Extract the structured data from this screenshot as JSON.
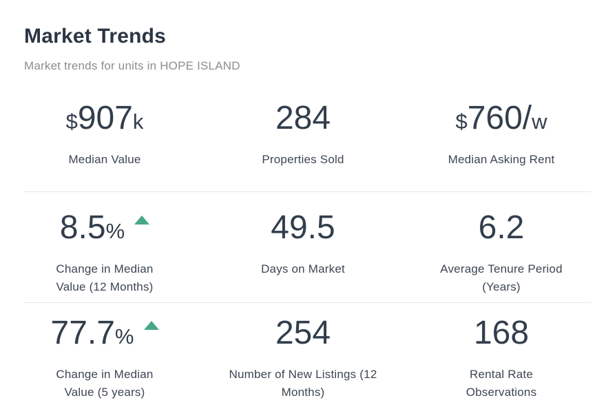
{
  "header": {
    "title": "Market Trends",
    "subtitle": "Market trends for units in HOPE ISLAND"
  },
  "colors": {
    "accent_green": "#46a888",
    "value_text": "#333e4c",
    "label_text": "#3d4653",
    "subtitle_text": "#8d8d8d",
    "divider": "#e7e7e7"
  },
  "stats": [
    {
      "prefix": "$",
      "main": "907",
      "suffix": "k",
      "label": "Median Value"
    },
    {
      "prefix": "",
      "main": "284",
      "suffix": "",
      "label": "Properties Sold"
    },
    {
      "prefix": "$",
      "main": "760/",
      "suffix": "w",
      "label": "Median Asking Rent"
    },
    {
      "prefix": "",
      "main": "8.5",
      "suffix": "%",
      "trend": "up",
      "trend_icon": "triangle-up",
      "label": "Change in Median\nValue (12 Months)"
    },
    {
      "prefix": "",
      "main": "49.5",
      "suffix": "",
      "label": "Days on Market"
    },
    {
      "prefix": "",
      "main": "6.2",
      "suffix": "",
      "label": "Average Tenure Period\n(Years)"
    },
    {
      "prefix": "",
      "main": "77.7",
      "suffix": "%",
      "trend": "up",
      "trend_icon": "triangle-up",
      "label": "Change in Median\nValue (5 years)"
    },
    {
      "prefix": "",
      "main": "254",
      "suffix": "",
      "label": "Number of New Listings (12\nMonths)"
    },
    {
      "prefix": "",
      "main": "168",
      "suffix": "",
      "label": "Rental Rate\nObservations"
    }
  ]
}
